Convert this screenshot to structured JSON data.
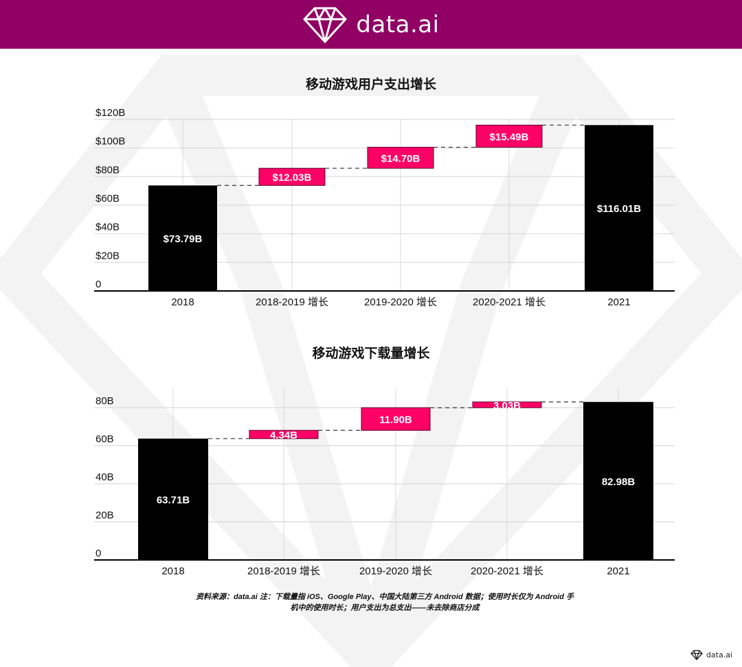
{
  "header": {
    "brand": "data.ai",
    "logo_icon": "diamond-icon",
    "background": "#910063"
  },
  "colors": {
    "total_bar": "#000000",
    "delta_bar": "#ff0066",
    "grid": "#d9d9d9",
    "axis": "#000000"
  },
  "chart_data": [
    {
      "type": "bar",
      "subtype": "waterfall",
      "title": "移动游戏用户支出增长",
      "categories": [
        "2018",
        "2018-2019 增长",
        "2019-2020 增长",
        "2020-2021 增长",
        "2021"
      ],
      "values": [
        73.79,
        12.03,
        14.7,
        15.49,
        116.01
      ],
      "bar_kind": [
        "total",
        "delta",
        "delta",
        "delta",
        "total"
      ],
      "data_labels": [
        "$73.79B",
        "$12.03B",
        "$14.70B",
        "$15.49B",
        "$116.01B"
      ],
      "xlabel": "",
      "ylabel": "",
      "ylim": [
        0,
        120
      ],
      "yticks": [
        0,
        20,
        40,
        60,
        80,
        100,
        120
      ],
      "ytick_labels": [
        "0",
        "$20B",
        "$40B",
        "$60B",
        "$80B",
        "$100B",
        "$120B"
      ],
      "grid": true,
      "legend": "none"
    },
    {
      "type": "bar",
      "subtype": "waterfall",
      "title": "移动游戏下载量增长",
      "categories": [
        "2018",
        "2018-2019 增长",
        "2019-2020 增长",
        "2020-2021 增长",
        "2021"
      ],
      "values": [
        63.71,
        4.34,
        11.9,
        3.03,
        82.98
      ],
      "bar_kind": [
        "total",
        "delta",
        "delta",
        "delta",
        "total"
      ],
      "data_labels": [
        "63.71B",
        "4.34B",
        "11.90B",
        "3.03B",
        "82.98B"
      ],
      "xlabel": "",
      "ylabel": "",
      "ylim": [
        0,
        80
      ],
      "yticks": [
        0,
        20,
        40,
        60,
        80
      ],
      "ytick_labels": [
        "0",
        "20B",
        "40B",
        "60B",
        "80B"
      ],
      "grid": true,
      "legend": "none"
    }
  ],
  "footnote": {
    "line1": "资料来源：data.ai 注：下载量指 iOS、Google Play、中国大陆第三方 Android 数据；使用时长仅为 Android 手",
    "line2": "机中的使用时长；用户支出为总支出——未去除商店分成"
  },
  "corner_logo": {
    "brand": "data.ai"
  }
}
